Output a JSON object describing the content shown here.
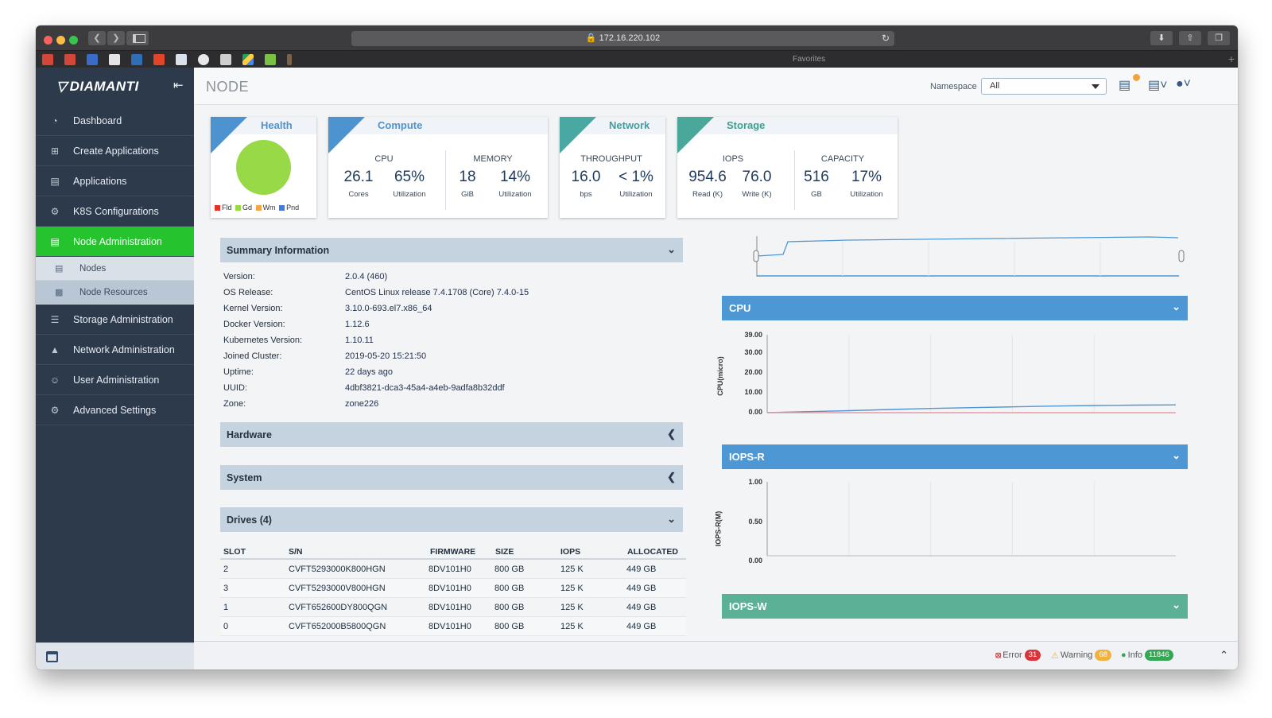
{
  "browser": {
    "url": "172.16.220.102",
    "favorites_label": "Favorites"
  },
  "brand": {
    "name": "DIAMANTI"
  },
  "sidebar": {
    "items": [
      {
        "label": "Dashboard",
        "icon": "dashboard-icon"
      },
      {
        "label": "Create Applications",
        "icon": "plus-square-icon"
      },
      {
        "label": "Applications",
        "icon": "list-icon"
      },
      {
        "label": "K8S Configurations",
        "icon": "gears-icon"
      },
      {
        "label": "Node Administration",
        "icon": "server-icon",
        "active": true
      },
      {
        "label": "Storage Administration",
        "icon": "database-icon"
      },
      {
        "label": "Network Administration",
        "icon": "network-icon"
      },
      {
        "label": "User Administration",
        "icon": "users-icon"
      },
      {
        "label": "Advanced Settings",
        "icon": "settings-icon"
      }
    ],
    "subitems": [
      {
        "label": "Nodes",
        "icon": "server-icon"
      },
      {
        "label": "Node Resources",
        "icon": "nodes-icon",
        "selected": true
      }
    ]
  },
  "header": {
    "title": "NODE",
    "namespace_label": "Namespace",
    "namespace_value": "All"
  },
  "cards": {
    "health": {
      "title": "Health",
      "legend": [
        "Fld",
        "Gd",
        "Wm",
        "Pnd"
      ],
      "legend_colors": [
        "#e5332a",
        "#97d947",
        "#f0a64a",
        "#3d7ee0"
      ]
    },
    "compute": {
      "title": "Compute",
      "cpu_label": "CPU",
      "cpu_cores": "26.1",
      "cpu_cores_unit": "Cores",
      "cpu_util": "65%",
      "cpu_util_unit": "Utilization",
      "mem_label": "MEMORY",
      "mem_size": "18",
      "mem_size_unit": "GiB",
      "mem_util": "14%",
      "mem_util_unit": "Utilization"
    },
    "network": {
      "title": "Network",
      "tp_label": "THROUGHPUT",
      "tp_value": "16.0",
      "tp_unit": "bps",
      "tp_util": "< 1%",
      "tp_util_unit": "Utilization"
    },
    "storage": {
      "title": "Storage",
      "iops_label": "IOPS",
      "iops_read": "954.6",
      "iops_read_unit": "Read (K)",
      "iops_write": "76.0",
      "iops_write_unit": "Write (K)",
      "cap_label": "CAPACITY",
      "cap_value": "516",
      "cap_unit": "GB",
      "cap_util": "17%",
      "cap_util_unit": "Utilization"
    }
  },
  "summary": {
    "title": "Summary Information",
    "rows": [
      {
        "k": "Version:",
        "v": "2.0.4 (460)"
      },
      {
        "k": "OS Release:",
        "v": "CentOS Linux release 7.4.1708 (Core) 7.4.0-15"
      },
      {
        "k": "Kernel Version:",
        "v": "3.10.0-693.el7.x86_64"
      },
      {
        "k": "Docker Version:",
        "v": "1.12.6"
      },
      {
        "k": "Kubernetes Version:",
        "v": "1.10.11"
      },
      {
        "k": "Joined Cluster:",
        "v": "2019-05-20 15:21:50"
      },
      {
        "k": "Uptime:",
        "v": "22 days ago"
      },
      {
        "k": "UUID:",
        "v": "4dbf3821-dca3-45a4-a4eb-9adfa8b32ddf"
      },
      {
        "k": "Zone:",
        "v": "zone226"
      }
    ]
  },
  "panels": {
    "hardware": "Hardware",
    "system": "System",
    "drives": "Drives (4)"
  },
  "drives": {
    "headers": [
      "SLOT",
      "S/N",
      "FIRMWARE",
      "SIZE",
      "IOPS",
      "ALLOCATED"
    ],
    "rows": [
      [
        "2",
        "CVFT5293000K800HGN",
        "8DV101H0",
        "800 GB",
        "125 K",
        "449 GB"
      ],
      [
        "3",
        "CVFT5293000V800HGN",
        "8DV101H0",
        "800 GB",
        "125 K",
        "449 GB"
      ],
      [
        "1",
        "CVFT652600DY800QGN",
        "8DV101H0",
        "800 GB",
        "125 K",
        "449 GB"
      ],
      [
        "0",
        "CVFT652000B5800QGN",
        "8DV101H0",
        "800 GB",
        "125 K",
        "449 GB"
      ]
    ]
  },
  "charts": {
    "cpu": {
      "title": "CPU",
      "ylabel": "CPU(micro)",
      "ticks": [
        "39.00",
        "30.00",
        "20.00",
        "10.00",
        "0.00"
      ]
    },
    "iops_r": {
      "title": "IOPS-R",
      "ylabel": "IOPS-R(M)",
      "ticks": [
        "1.00",
        "0.50",
        "0.00"
      ]
    },
    "iops_w": {
      "title": "IOPS-W"
    }
  },
  "chart_data": [
    {
      "type": "line",
      "title": "CPU",
      "ylabel": "CPU(micro)",
      "ylim": [
        0,
        39
      ],
      "yticks": [
        0,
        10,
        20,
        30,
        39
      ],
      "series": [
        {
          "values": [
            0.0,
            0.5,
            1.0,
            1.6,
            2.1,
            2.5,
            2.9,
            3.3,
            3.6,
            3.8,
            3.9
          ],
          "color": "#4d98d4"
        },
        {
          "values": [
            0,
            0,
            0,
            0,
            0,
            0,
            0,
            0,
            0,
            0,
            0
          ],
          "color": "#e89aa7"
        }
      ],
      "grid": true
    },
    {
      "type": "line",
      "title": "IOPS-R",
      "ylabel": "IOPS-R(M)",
      "ylim": [
        0,
        1
      ],
      "yticks": [
        0,
        0.5,
        1
      ],
      "series": [],
      "grid": true
    }
  ],
  "status": {
    "error_label": "Error",
    "error_count": "31",
    "warning_label": "Warning",
    "warning_count": "68",
    "info_label": "Info",
    "info_count": "11846",
    "colors": {
      "error": "#d9343a",
      "warning": "#f1b23d",
      "info": "#35a653"
    }
  }
}
